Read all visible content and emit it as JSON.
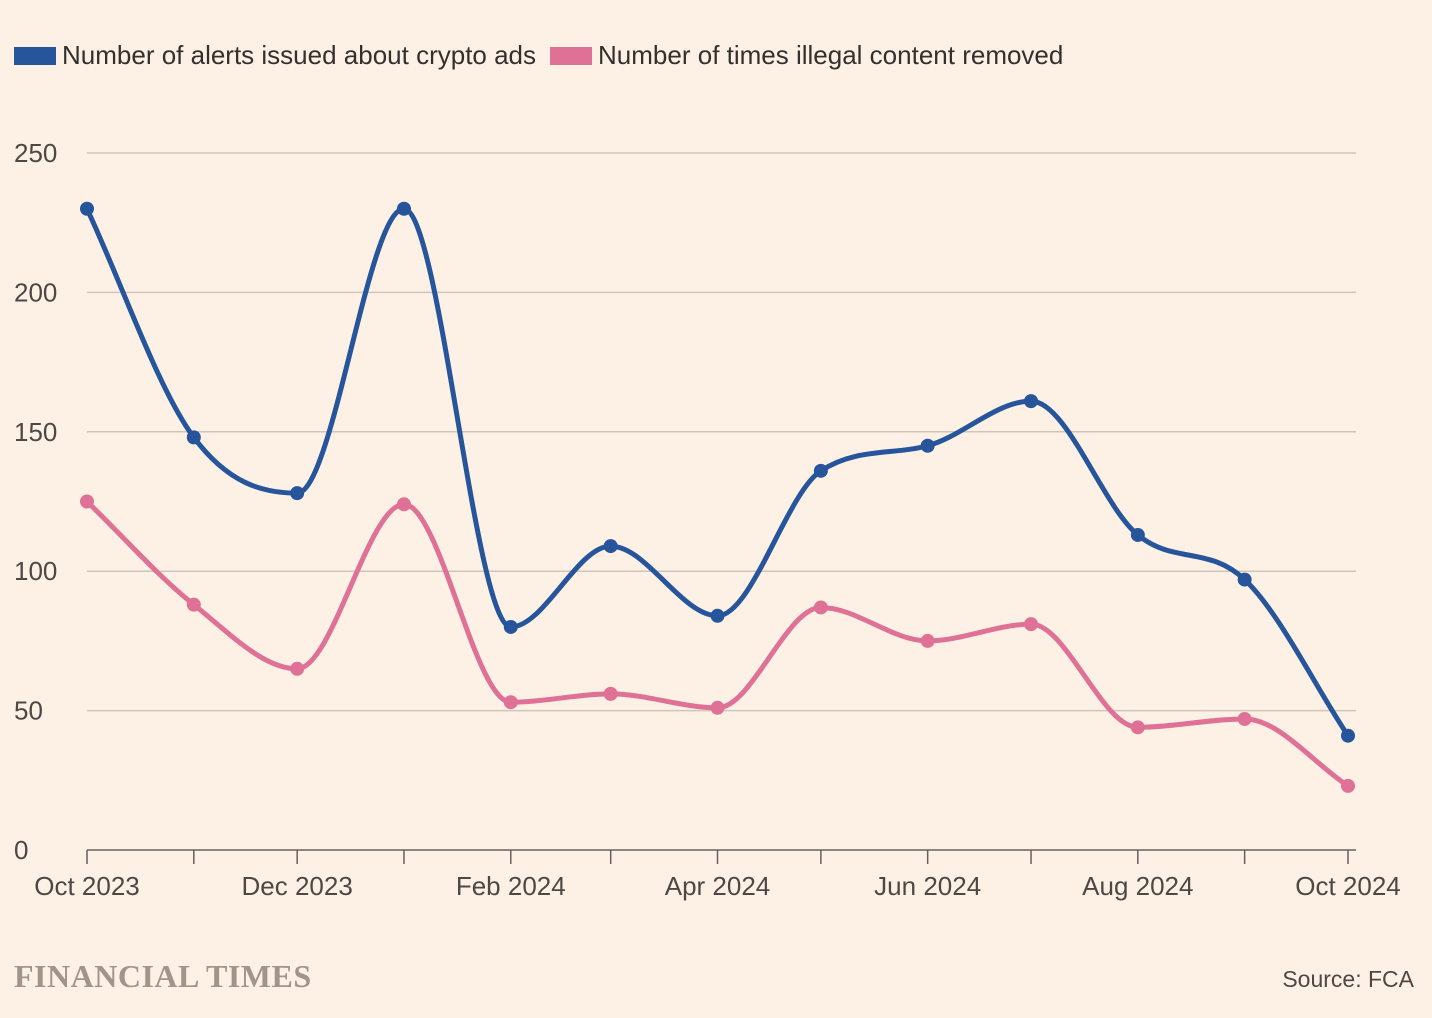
{
  "chart_data": {
    "type": "line",
    "title": "",
    "xlabel": "",
    "ylabel": "",
    "x": [
      "2023-10",
      "2023-11",
      "2023-12",
      "2024-01",
      "2024-02",
      "2024-03",
      "2024-04",
      "2024-05",
      "2024-06",
      "2024-07",
      "2024-08",
      "2024-09",
      "2024-10"
    ],
    "x_tick_labels": [
      "Oct 2023",
      "",
      "Dec 2023",
      "",
      "Feb 2024",
      "",
      "Apr 2024",
      "",
      "Jun 2024",
      "",
      "Aug 2024",
      "",
      "Oct 2024"
    ],
    "y_ticks": [
      0,
      50,
      100,
      150,
      200,
      250
    ],
    "ylim": [
      0,
      250
    ],
    "grid": true,
    "legend_position": "top-left",
    "series": [
      {
        "name": "Number of alerts issued about crypto ads",
        "color": "#26559b",
        "values": [
          230,
          148,
          128,
          230,
          80,
          109,
          84,
          136,
          145,
          161,
          113,
          97,
          41
        ]
      },
      {
        "name": "Number of times illegal content removed",
        "color": "#e07196",
        "values": [
          125,
          88,
          65,
          124,
          53,
          56,
          51,
          87,
          75,
          81,
          44,
          47,
          23
        ]
      }
    ]
  },
  "footer": {
    "logo": "FINANCIAL TIMES",
    "source": "Source: FCA"
  },
  "colors": {
    "background": "#fdf1e5",
    "grid": "#cfc5bb",
    "axis": "#66605c"
  }
}
